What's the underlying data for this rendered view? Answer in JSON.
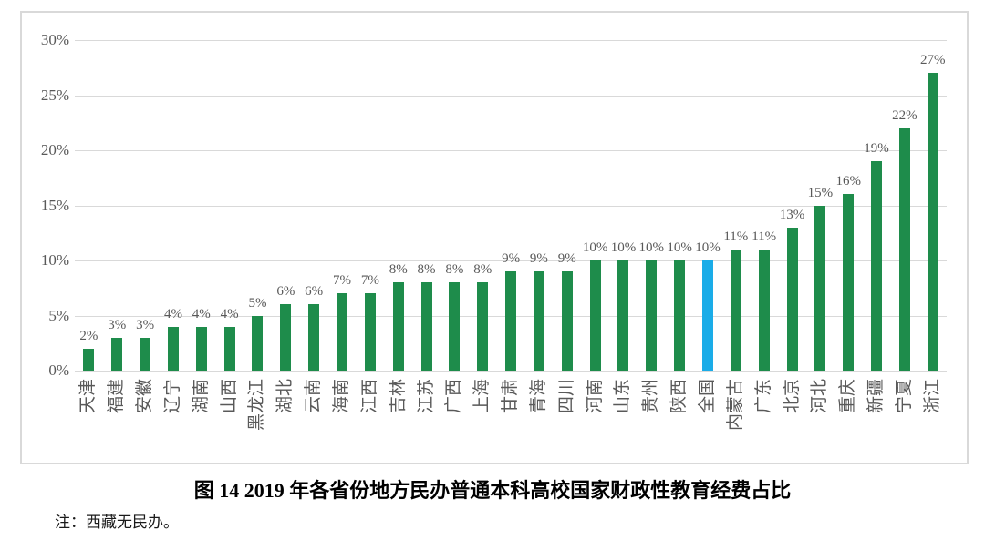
{
  "chart_data": {
    "type": "bar",
    "title": "图 14  2019 年各省份地方民办普通本科高校国家财政性教育经费占比",
    "note": "注：西藏无民办。",
    "unit": "%",
    "ylim": [
      0,
      30
    ],
    "grid": true,
    "legend": "none",
    "bar_color": "#1e8c4b",
    "highlight_color": "#1aace8",
    "grid_color": "#d9d9d9",
    "label_color": "#595959",
    "highlight_category": "全国",
    "yticks": [
      {
        "value": 0,
        "label": "0%"
      },
      {
        "value": 5,
        "label": "5%"
      },
      {
        "value": 10,
        "label": "10%"
      },
      {
        "value": 15,
        "label": "15%"
      },
      {
        "value": 20,
        "label": "20%"
      },
      {
        "value": 25,
        "label": "25%"
      },
      {
        "value": 30,
        "label": "30%"
      }
    ],
    "bars": [
      {
        "category": "天津",
        "value": 2,
        "display": "2%",
        "highlight": false
      },
      {
        "category": "福建",
        "value": 3,
        "display": "3%",
        "highlight": false
      },
      {
        "category": "安徽",
        "value": 3,
        "display": "3%",
        "highlight": false
      },
      {
        "category": "辽宁",
        "value": 4,
        "display": "4%",
        "highlight": false
      },
      {
        "category": "湖南",
        "value": 4,
        "display": "4%",
        "highlight": false
      },
      {
        "category": "山西",
        "value": 4,
        "display": "4%",
        "highlight": false
      },
      {
        "category": "黑龙江",
        "value": 5,
        "display": "5%",
        "highlight": false
      },
      {
        "category": "湖北",
        "value": 6,
        "display": "6%",
        "highlight": false
      },
      {
        "category": "云南",
        "value": 6,
        "display": "6%",
        "highlight": false
      },
      {
        "category": "海南",
        "value": 7,
        "display": "7%",
        "highlight": false
      },
      {
        "category": "江西",
        "value": 7,
        "display": "7%",
        "highlight": false
      },
      {
        "category": "吉林",
        "value": 8,
        "display": "8%",
        "highlight": false
      },
      {
        "category": "江苏",
        "value": 8,
        "display": "8%",
        "highlight": false
      },
      {
        "category": "广西",
        "value": 8,
        "display": "8%",
        "highlight": false
      },
      {
        "category": "上海",
        "value": 8,
        "display": "8%",
        "highlight": false
      },
      {
        "category": "甘肃",
        "value": 9,
        "display": "9%",
        "highlight": false
      },
      {
        "category": "青海",
        "value": 9,
        "display": "9%",
        "highlight": false
      },
      {
        "category": "四川",
        "value": 9,
        "display": "9%",
        "highlight": false
      },
      {
        "category": "河南",
        "value": 10,
        "display": "10%",
        "highlight": false
      },
      {
        "category": "山东",
        "value": 10,
        "display": "10%",
        "highlight": false
      },
      {
        "category": "贵州",
        "value": 10,
        "display": "10%",
        "highlight": false
      },
      {
        "category": "陕西",
        "value": 10,
        "display": "10%",
        "highlight": false
      },
      {
        "category": "全国",
        "value": 10,
        "display": "10%",
        "highlight": true
      },
      {
        "category": "内蒙古",
        "value": 11,
        "display": "11%",
        "highlight": false
      },
      {
        "category": "广东",
        "value": 11,
        "display": "11%",
        "highlight": false
      },
      {
        "category": "北京",
        "value": 13,
        "display": "13%",
        "highlight": false
      },
      {
        "category": "河北",
        "value": 15,
        "display": "15%",
        "highlight": false
      },
      {
        "category": "重庆",
        "value": 16,
        "display": "16%",
        "highlight": false
      },
      {
        "category": "新疆",
        "value": 19,
        "display": "19%",
        "highlight": false
      },
      {
        "category": "宁夏",
        "value": 22,
        "display": "22%",
        "highlight": false
      },
      {
        "category": "浙江",
        "value": 27,
        "display": "27%",
        "highlight": false
      }
    ]
  }
}
